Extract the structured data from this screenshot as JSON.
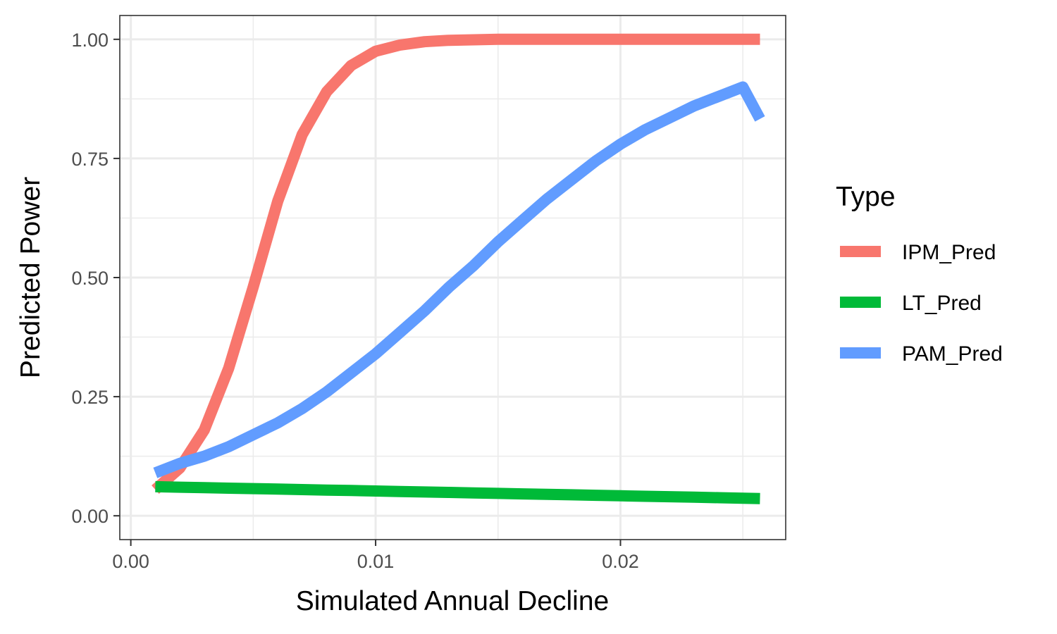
{
  "chart_data": {
    "type": "line",
    "xlabel": "Simulated Annual Decline",
    "ylabel": "Predicted Power",
    "xlim": [
      -0.00045,
      0.02675
    ],
    "ylim": [
      -0.05,
      1.05
    ],
    "x_ticks": [
      0.0,
      0.01,
      0.02
    ],
    "x_tick_labels": [
      "0.00",
      "0.01",
      "0.02"
    ],
    "x_minor_ticks": [
      0.005,
      0.015,
      0.025
    ],
    "y_ticks": [
      0.0,
      0.25,
      0.5,
      0.75,
      1.0
    ],
    "y_tick_labels": [
      "0.00",
      "0.25",
      "0.50",
      "0.75",
      "1.00"
    ],
    "y_minor_ticks": [
      0.125,
      0.375,
      0.625,
      0.875
    ],
    "grid": true,
    "legend_title": "Type",
    "legend_position": "right",
    "x": [
      0.001,
      0.002,
      0.003,
      0.004,
      0.005,
      0.006,
      0.007,
      0.008,
      0.009,
      0.01,
      0.011,
      0.012,
      0.013,
      0.014,
      0.015,
      0.016,
      0.017,
      0.018,
      0.019,
      0.02,
      0.021,
      0.022,
      0.023,
      0.024,
      0.025,
      0.0257
    ],
    "series": [
      {
        "name": "IPM_Pred",
        "color": "#F8766D",
        "values": [
          0.055,
          0.1,
          0.18,
          0.31,
          0.48,
          0.66,
          0.8,
          0.89,
          0.945,
          0.975,
          0.988,
          0.995,
          0.998,
          0.999,
          1.0,
          1.0,
          1.0,
          1.0,
          1.0,
          1.0,
          1.0,
          1.0,
          1.0,
          1.0,
          1.0,
          1.0
        ]
      },
      {
        "name": "LT_Pred",
        "color": "#00BA38",
        "values": [
          0.061,
          0.06,
          0.059,
          0.058,
          0.057,
          0.056,
          0.055,
          0.054,
          0.053,
          0.052,
          0.051,
          0.05,
          0.049,
          0.048,
          0.047,
          0.046,
          0.045,
          0.044,
          0.043,
          0.042,
          0.041,
          0.04,
          0.039,
          0.038,
          0.037,
          0.036
        ]
      },
      {
        "name": "PAM_Pred",
        "color": "#619CFF",
        "values": [
          0.09,
          0.11,
          0.125,
          0.145,
          0.17,
          0.195,
          0.225,
          0.26,
          0.3,
          0.34,
          0.385,
          0.43,
          0.48,
          0.525,
          0.575,
          0.62,
          0.665,
          0.705,
          0.745,
          0.78,
          0.81,
          0.835,
          0.86,
          0.88,
          0.9,
          0.833
        ]
      }
    ]
  }
}
